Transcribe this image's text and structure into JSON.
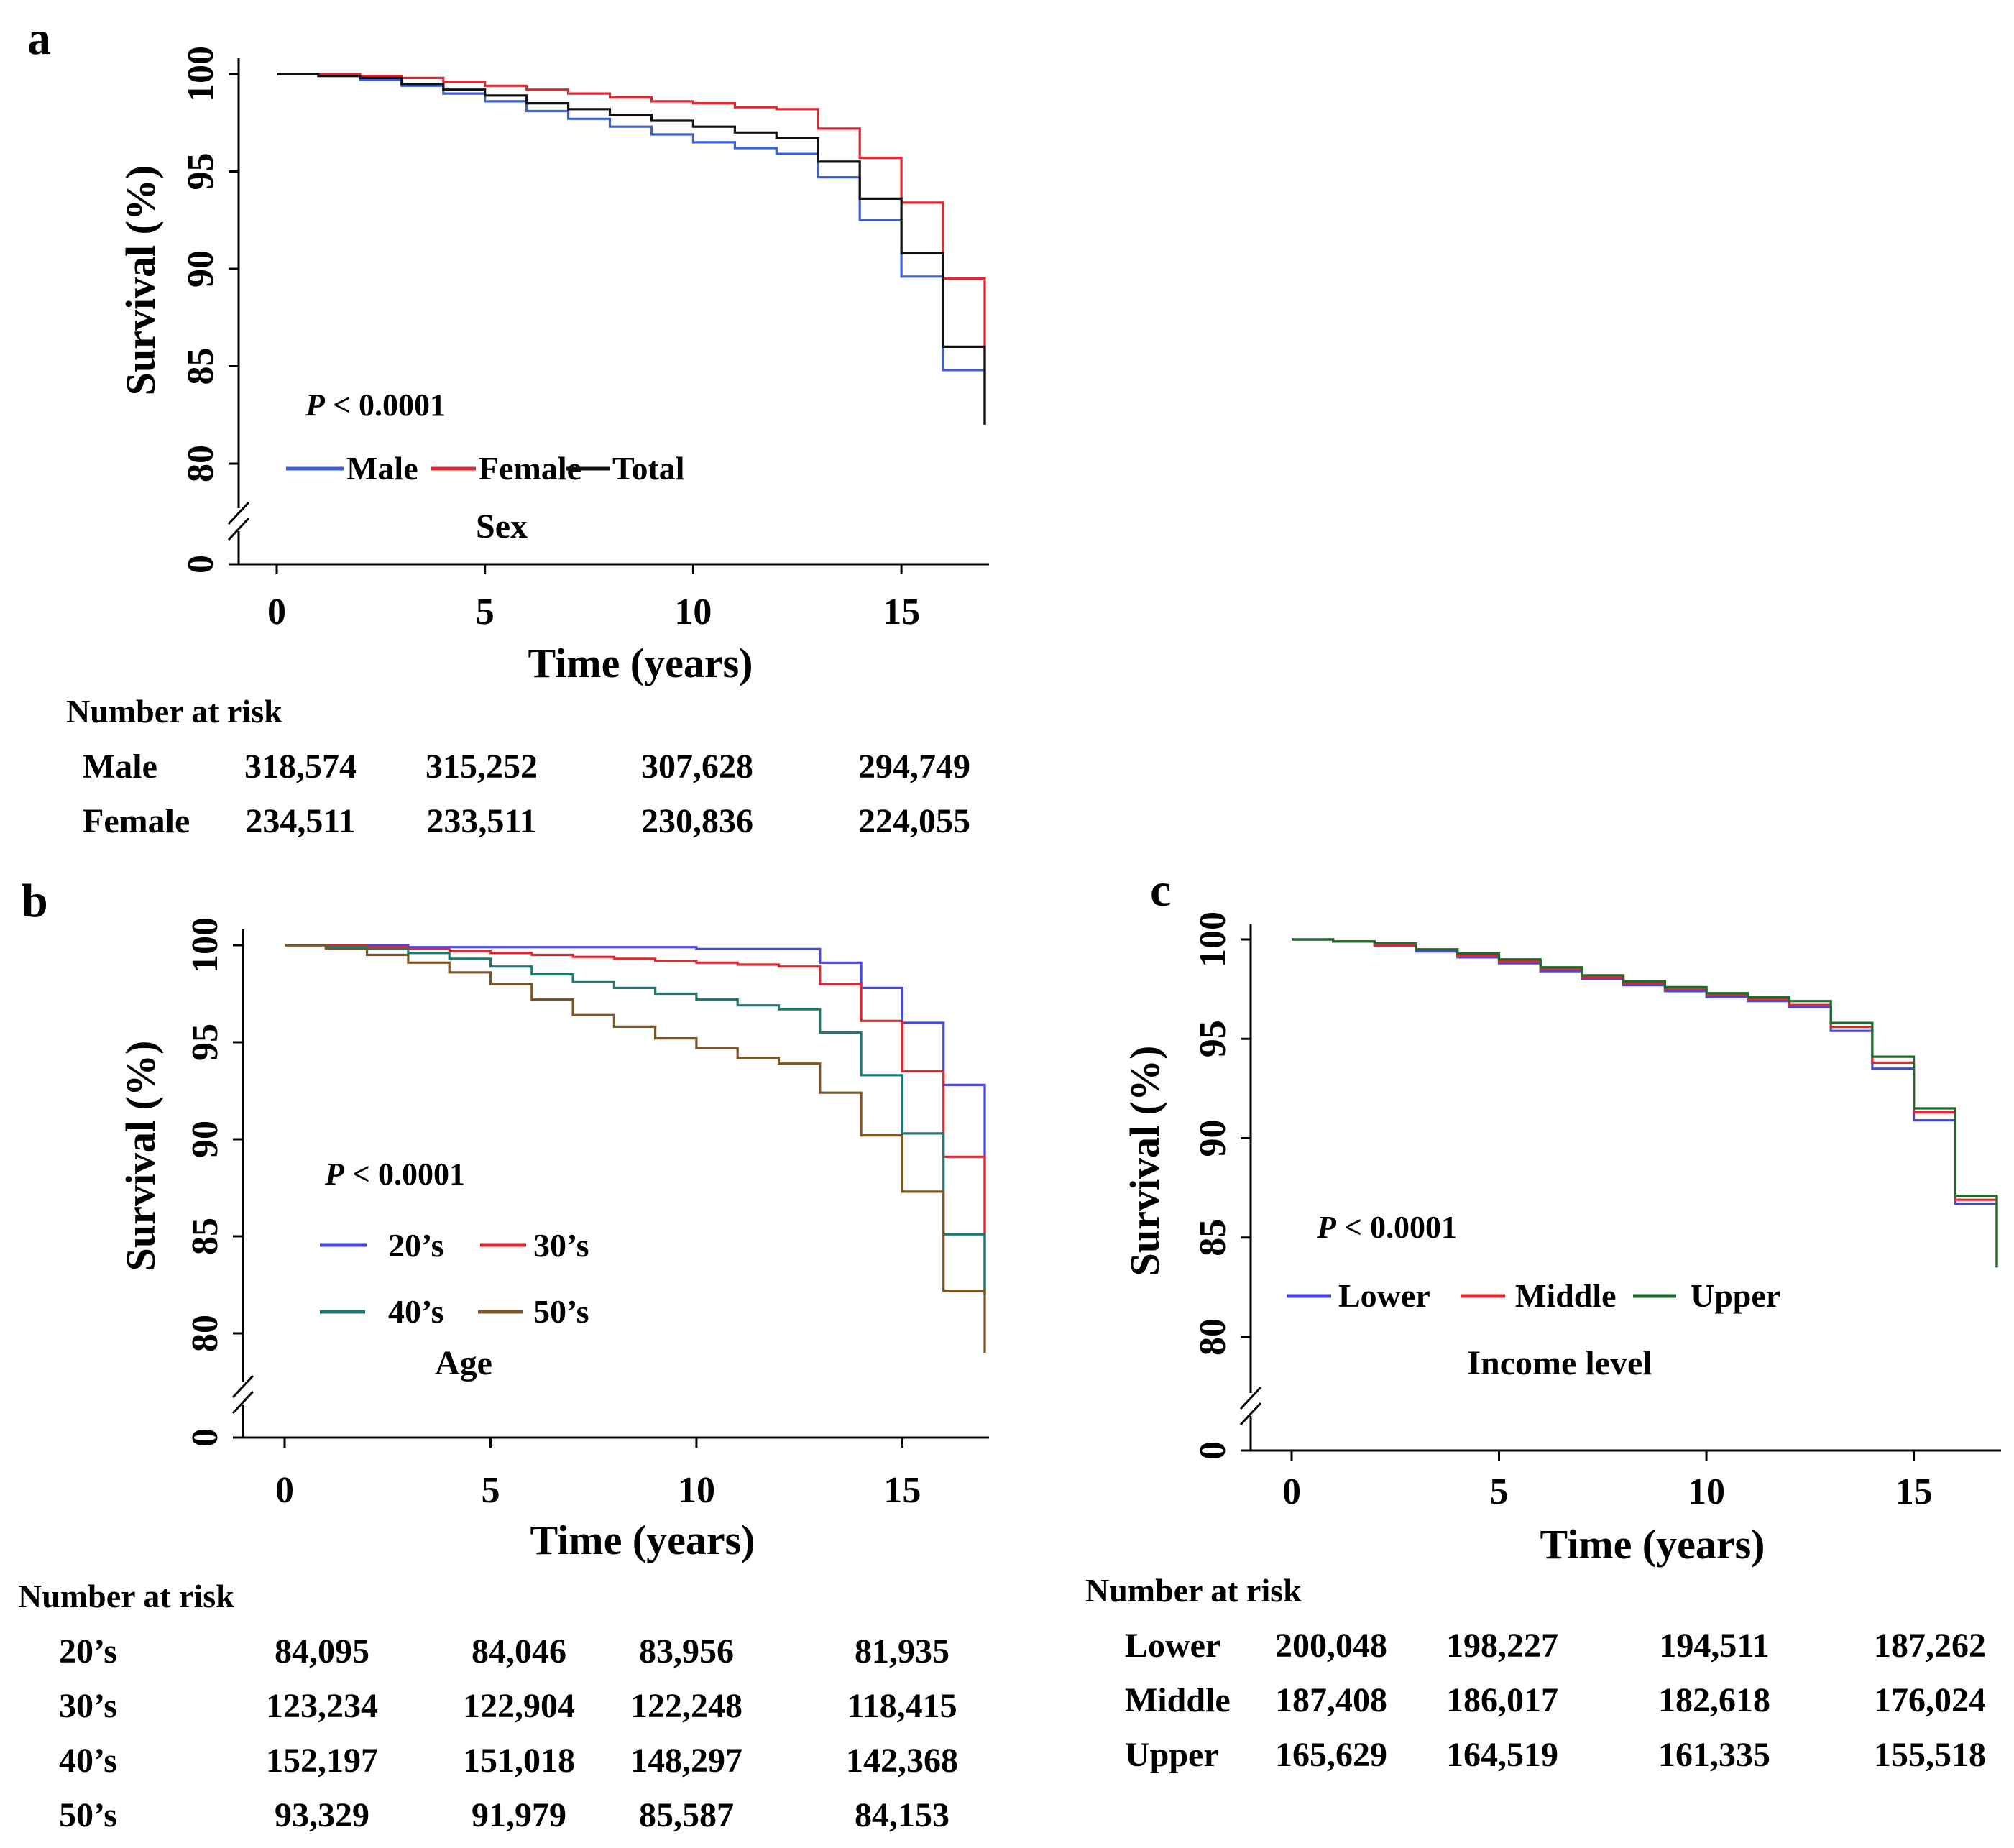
{
  "chart_data": [
    {
      "type": "line",
      "step": true,
      "panel": "a",
      "group_title": "Sex",
      "xlabel": "Time (years)",
      "ylabel": "Survival (%)",
      "xlim": [
        0,
        17
      ],
      "ylim": [
        80,
        100
      ],
      "axis_break": true,
      "xticks": [
        "0",
        "5",
        "10",
        "15"
      ],
      "yticks": [
        "0",
        "80",
        "85",
        "90",
        "95",
        "100"
      ],
      "p_value": {
        "label": "P",
        "text": " < 0.0001"
      },
      "series": [
        {
          "name": "Male",
          "color": "#3b5fd9",
          "x": [
            0,
            1,
            2,
            3,
            4,
            5,
            6,
            7,
            8,
            9,
            10,
            11,
            12,
            13,
            14,
            15,
            16,
            17
          ],
          "y": [
            100,
            99.9,
            99.7,
            99.4,
            99.0,
            98.6,
            98.1,
            97.7,
            97.3,
            96.9,
            96.5,
            96.2,
            95.9,
            94.7,
            92.5,
            89.6,
            84.8,
            82.0
          ]
        },
        {
          "name": "Female",
          "color": "#e0262e",
          "x": [
            0,
            1,
            2,
            3,
            4,
            5,
            6,
            7,
            8,
            9,
            10,
            11,
            12,
            13,
            14,
            15,
            16,
            17
          ],
          "y": [
            100,
            100,
            99.9,
            99.8,
            99.6,
            99.4,
            99.2,
            99.0,
            98.8,
            98.6,
            98.5,
            98.3,
            98.2,
            97.2,
            95.7,
            93.4,
            89.5,
            82.0
          ]
        },
        {
          "name": "Total",
          "color": "#111111",
          "x": [
            0,
            1,
            2,
            3,
            4,
            5,
            6,
            7,
            8,
            9,
            10,
            11,
            12,
            13,
            14,
            15,
            16,
            17
          ],
          "y": [
            100,
            99.9,
            99.8,
            99.5,
            99.2,
            98.9,
            98.5,
            98.2,
            97.9,
            97.6,
            97.3,
            97.0,
            96.7,
            95.5,
            93.6,
            90.8,
            86.0,
            82.0
          ]
        }
      ],
      "risk_table": {
        "title": "Number at risk",
        "rows": [
          {
            "label": "Male",
            "values": [
              "318,574",
              "315,252",
              "307,628",
              "294,749"
            ]
          },
          {
            "label": "Female",
            "values": [
              "234,511",
              "233,511",
              "230,836",
              "224,055"
            ]
          }
        ]
      }
    },
    {
      "type": "line",
      "step": true,
      "panel": "b",
      "group_title": "Age",
      "xlabel": "Time (years)",
      "ylabel": "Survival (%)",
      "xlim": [
        0,
        17
      ],
      "ylim": [
        80,
        100
      ],
      "axis_break": true,
      "xticks": [
        "0",
        "5",
        "10",
        "15"
      ],
      "yticks": [
        "0",
        "80",
        "85",
        "90",
        "95",
        "100"
      ],
      "p_value": {
        "label": "P",
        "text": " < 0.0001"
      },
      "series": [
        {
          "name": "20’s",
          "color": "#4646e0",
          "x": [
            0,
            1,
            2,
            3,
            4,
            5,
            6,
            7,
            8,
            9,
            10,
            11,
            12,
            13,
            14,
            15,
            16,
            17
          ],
          "y": [
            100,
            100,
            100,
            99.9,
            99.9,
            99.9,
            99.9,
            99.9,
            99.9,
            99.9,
            99.8,
            99.8,
            99.8,
            99.1,
            97.8,
            96.0,
            92.8,
            82.0
          ]
        },
        {
          "name": "30’s",
          "color": "#e0262e",
          "x": [
            0,
            1,
            2,
            3,
            4,
            5,
            6,
            7,
            8,
            9,
            10,
            11,
            12,
            13,
            14,
            15,
            16,
            17
          ],
          "y": [
            100,
            100,
            99.9,
            99.8,
            99.7,
            99.6,
            99.5,
            99.4,
            99.3,
            99.2,
            99.1,
            99.0,
            98.9,
            98.0,
            96.1,
            93.5,
            89.1,
            82.0
          ]
        },
        {
          "name": "40’s",
          "color": "#1d7a72",
          "x": [
            0,
            1,
            2,
            3,
            4,
            5,
            6,
            7,
            8,
            9,
            10,
            11,
            12,
            13,
            14,
            15,
            16,
            17
          ],
          "y": [
            100,
            99.9,
            99.8,
            99.6,
            99.3,
            98.9,
            98.5,
            98.1,
            97.8,
            97.5,
            97.2,
            96.9,
            96.7,
            95.5,
            93.3,
            90.3,
            85.1,
            82.0
          ]
        },
        {
          "name": "50’s",
          "color": "#7d5524",
          "x": [
            0,
            1,
            2,
            3,
            4,
            5,
            6,
            7,
            8,
            9,
            10,
            11,
            12,
            13,
            14,
            15,
            16,
            17
          ],
          "y": [
            100,
            99.8,
            99.5,
            99.1,
            98.6,
            98.0,
            97.2,
            96.4,
            95.8,
            95.2,
            94.7,
            94.2,
            93.9,
            92.4,
            90.2,
            87.3,
            82.2,
            79.0
          ]
        }
      ],
      "risk_table": {
        "title": "Number at risk",
        "rows": [
          {
            "label": "20’s",
            "values": [
              "84,095",
              "84,046",
              "83,956",
              "81,935"
            ]
          },
          {
            "label": "30’s",
            "values": [
              "123,234",
              "122,904",
              "122,248",
              "118,415"
            ]
          },
          {
            "label": "40’s",
            "values": [
              "152,197",
              "151,018",
              "148,297",
              "142,368"
            ]
          },
          {
            "label": "50’s",
            "values": [
              "93,329",
              "91,979",
              "85,587",
              "84,153"
            ]
          }
        ]
      }
    },
    {
      "type": "line",
      "step": true,
      "panel": "c",
      "group_title": "Income level",
      "xlabel": "Time (years)",
      "ylabel": "Survival (%)",
      "xlim": [
        0,
        17
      ],
      "ylim": [
        80,
        100
      ],
      "axis_break": true,
      "xticks": [
        "0",
        "5",
        "10",
        "15"
      ],
      "yticks": [
        "0",
        "80",
        "85",
        "90",
        "95",
        "100"
      ],
      "p_value": {
        "label": "P",
        "text": " < 0.0001"
      },
      "series": [
        {
          "name": "Lower",
          "color": "#4646e0",
          "x": [
            0,
            1,
            2,
            3,
            4,
            5,
            6,
            7,
            8,
            9,
            10,
            11,
            12,
            13,
            14,
            15,
            16,
            17
          ],
          "y": [
            100,
            99.9,
            99.7,
            99.4,
            99.1,
            98.8,
            98.4,
            98.0,
            97.7,
            97.4,
            97.1,
            96.9,
            96.6,
            95.4,
            93.5,
            90.9,
            86.7,
            83.5
          ]
        },
        {
          "name": "Middle",
          "color": "#e0262e",
          "x": [
            0,
            1,
            2,
            3,
            4,
            5,
            6,
            7,
            8,
            9,
            10,
            11,
            12,
            13,
            14,
            15,
            16,
            17
          ],
          "y": [
            100,
            99.9,
            99.7,
            99.5,
            99.2,
            98.9,
            98.5,
            98.1,
            97.8,
            97.5,
            97.2,
            97.0,
            96.7,
            95.6,
            93.8,
            91.3,
            86.9,
            83.5
          ]
        },
        {
          "name": "Upper",
          "color": "#1c6b2a",
          "x": [
            0,
            1,
            2,
            3,
            4,
            5,
            6,
            7,
            8,
            9,
            10,
            11,
            12,
            13,
            14,
            15,
            16,
            17
          ],
          "y": [
            100,
            99.9,
            99.8,
            99.5,
            99.3,
            99.0,
            98.6,
            98.2,
            97.9,
            97.6,
            97.3,
            97.1,
            96.9,
            95.8,
            94.1,
            91.5,
            87.1,
            83.5
          ]
        }
      ],
      "risk_table": {
        "title": "Number at risk",
        "rows": [
          {
            "label": "Lower",
            "values": [
              "200,048",
              "198,227",
              "194,511",
              "187,262"
            ]
          },
          {
            "label": "Middle",
            "values": [
              "187,408",
              "186,017",
              "182,618",
              "176,024"
            ]
          },
          {
            "label": "Upper",
            "values": [
              "165,629",
              "164,519",
              "161,335",
              "155,518"
            ]
          }
        ]
      }
    }
  ]
}
